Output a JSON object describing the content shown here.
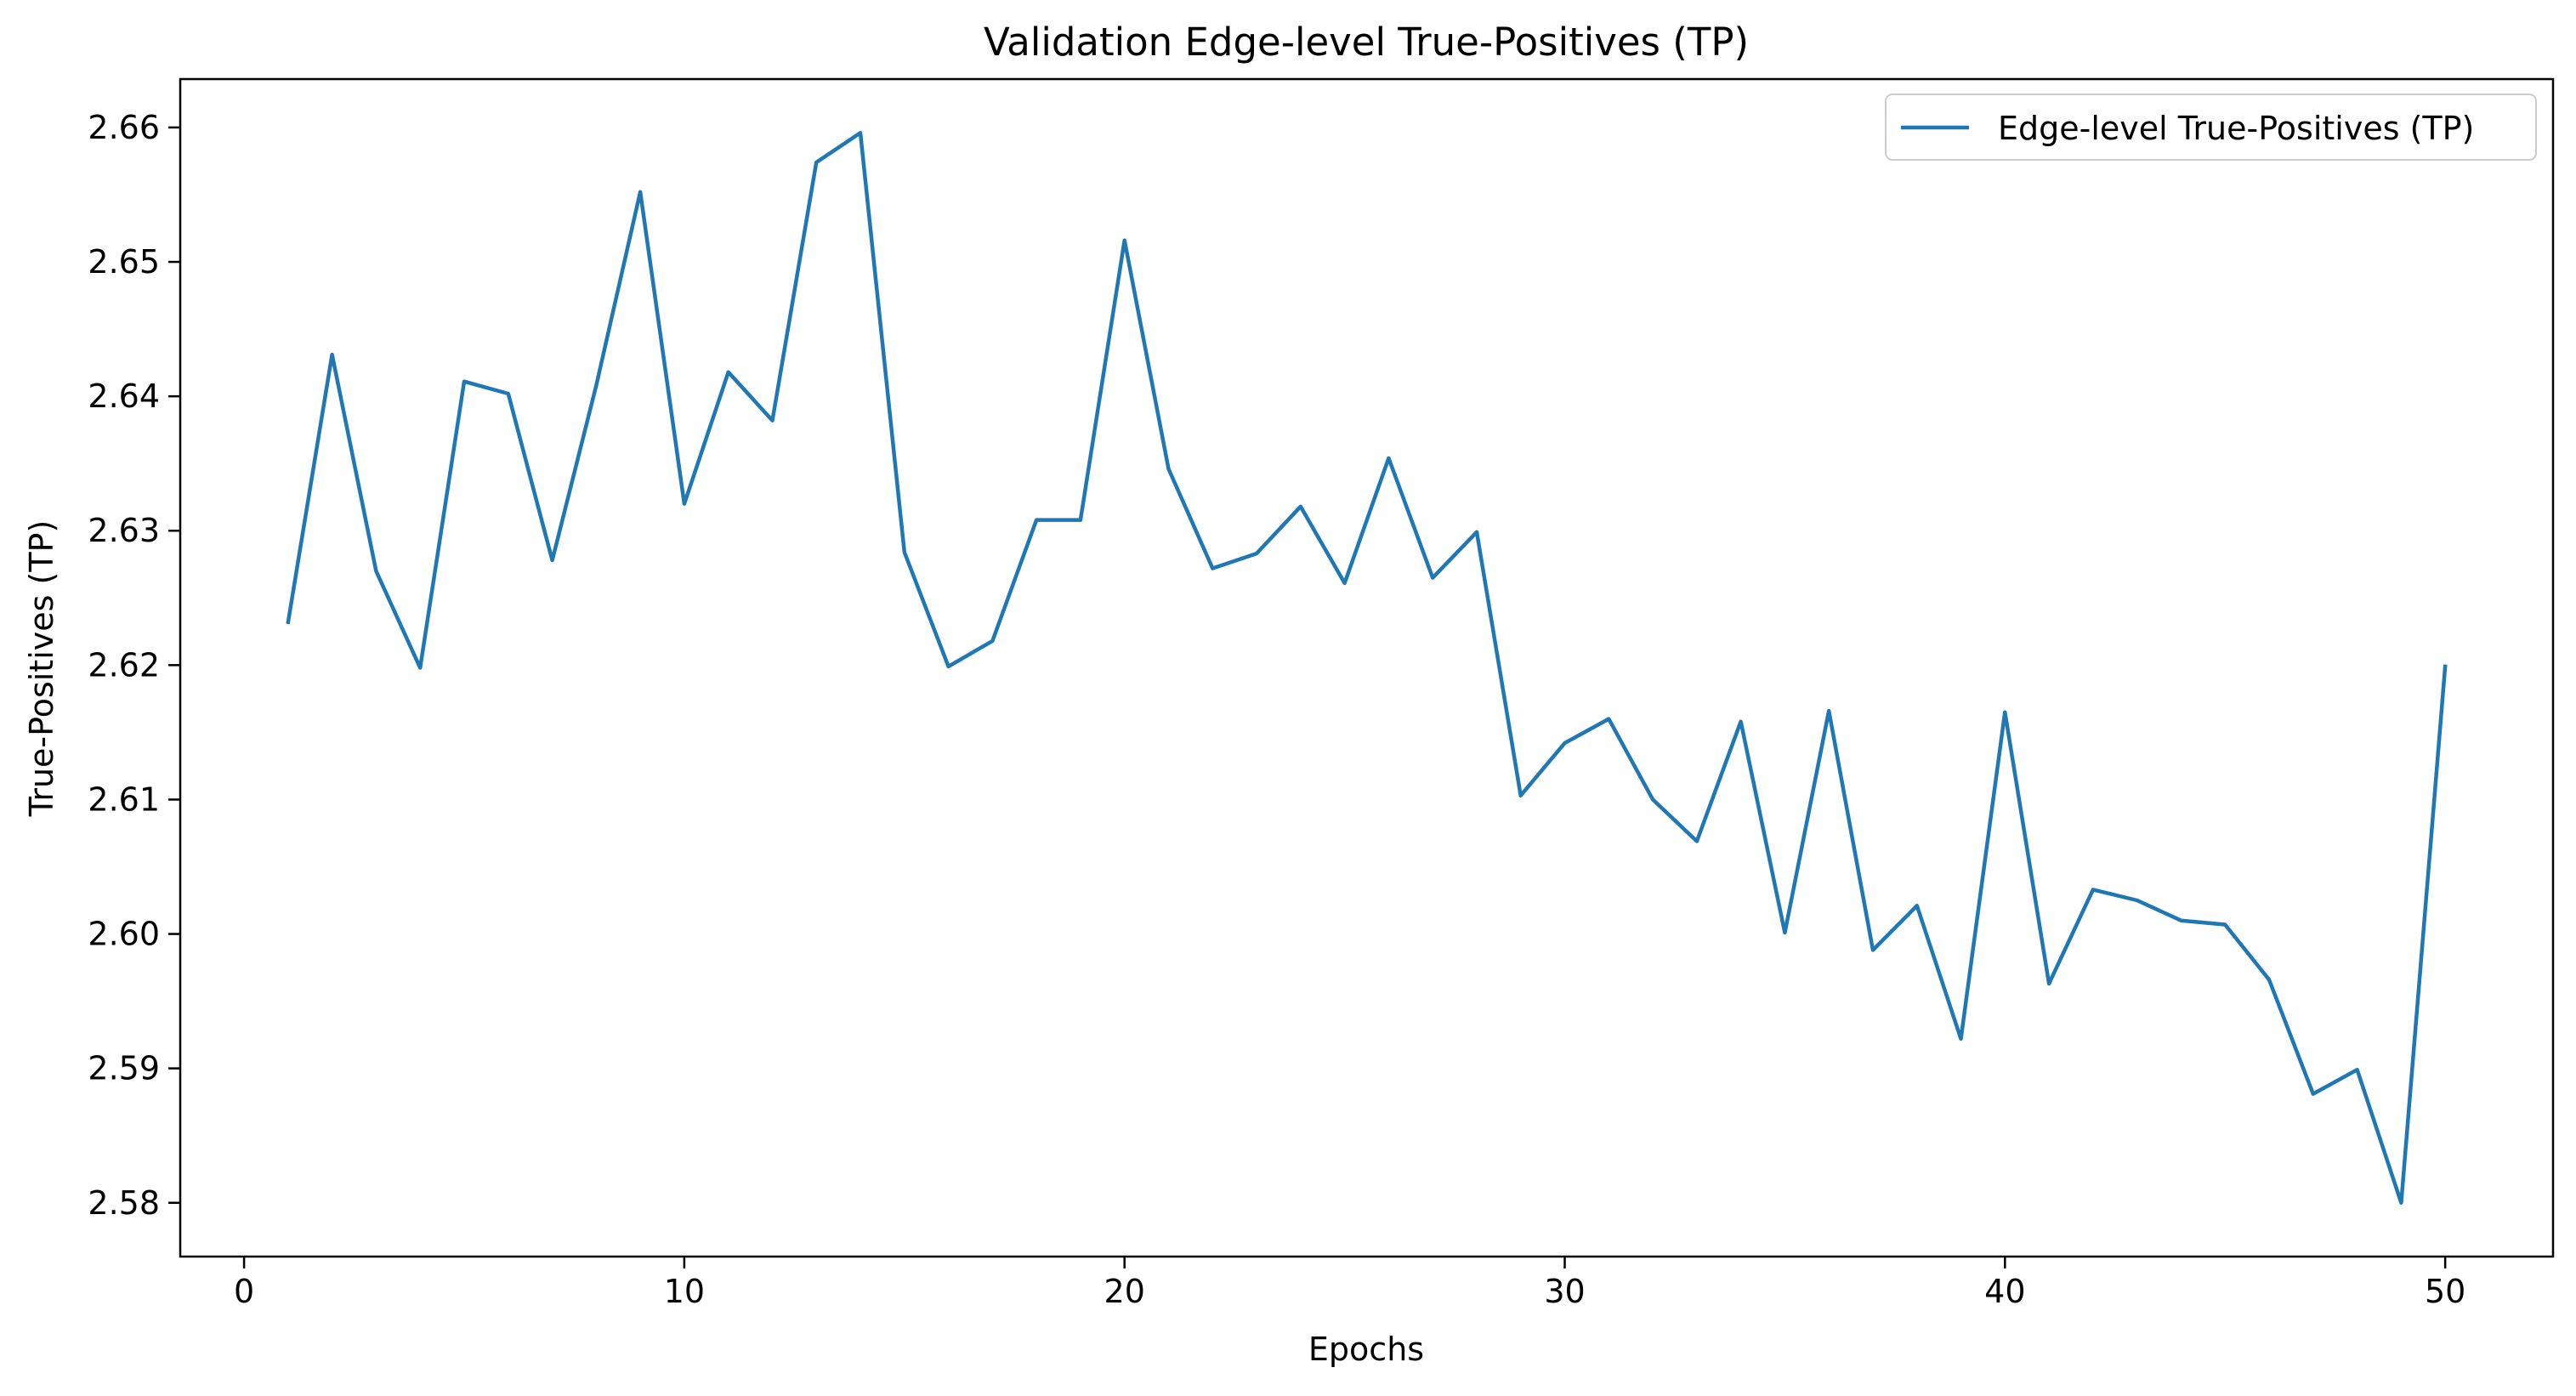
{
  "chart_data": {
    "type": "line",
    "title": "Validation Edge-level True-Positives (TP)",
    "xlabel": "Epochs",
    "ylabel": "True-Positives (TP)",
    "xlim": [
      -1.45,
      52.45
    ],
    "ylim": [
      2.576,
      2.6636
    ],
    "xticks": [
      0,
      10,
      20,
      30,
      40,
      50
    ],
    "xtick_labels": [
      "0",
      "10",
      "20",
      "30",
      "40",
      "50"
    ],
    "yticks": [
      2.58,
      2.59,
      2.6,
      2.61,
      2.62,
      2.63,
      2.64,
      2.65,
      2.66
    ],
    "ytick_labels": [
      "2.58",
      "2.59",
      "2.60",
      "2.61",
      "2.62",
      "2.63",
      "2.64",
      "2.65",
      "2.66"
    ],
    "grid": false,
    "legend_position": "top-right",
    "series": [
      {
        "name": "Edge-level True-Positives (TP)",
        "color": "#1f77b4",
        "x": [
          1,
          2,
          3,
          4,
          5,
          6,
          7,
          8,
          9,
          10,
          11,
          12,
          13,
          14,
          15,
          16,
          17,
          18,
          19,
          20,
          21,
          22,
          23,
          24,
          25,
          26,
          27,
          28,
          29,
          30,
          31,
          32,
          33,
          34,
          35,
          36,
          37,
          38,
          39,
          40,
          41,
          42,
          43,
          44,
          45,
          46,
          47,
          48,
          49,
          50
        ],
        "values": [
          2.6232,
          2.6431,
          2.627,
          2.6198,
          2.6411,
          2.6402,
          2.6278,
          2.6408,
          2.6552,
          2.632,
          2.6418,
          2.6382,
          2.6574,
          2.6596,
          2.6284,
          2.6199,
          2.6218,
          2.6308,
          2.6308,
          2.6516,
          2.6346,
          2.6272,
          2.6283,
          2.6318,
          2.6261,
          2.6354,
          2.6265,
          2.6299,
          2.6103,
          2.6142,
          2.616,
          2.61,
          2.6069,
          2.6158,
          2.6001,
          2.6166,
          2.5988,
          2.6021,
          2.5922,
          2.6165,
          2.5963,
          2.6033,
          2.6025,
          2.601,
          2.6007,
          2.5966,
          2.5881,
          2.5899,
          2.58,
          2.6199
        ]
      }
    ]
  }
}
